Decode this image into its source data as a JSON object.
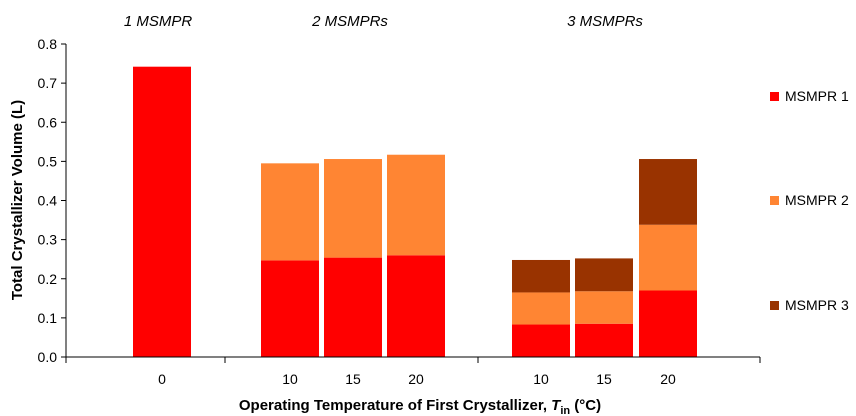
{
  "chart_data": {
    "type": "bar",
    "stacked": true,
    "ylabel": "Total Crystallizer Volume (L)",
    "xlabel_main": "Operating Temperature of First Crystallizer, ",
    "xlabel_sym": "T",
    "xlabel_sub": "in",
    "xlabel_unit": " (°C)",
    "ylim": [
      0,
      0.8
    ],
    "yticks": [
      "0.0",
      "0.1",
      "0.2",
      "0.3",
      "0.4",
      "0.5",
      "0.6",
      "0.7",
      "0.8"
    ],
    "grid": false,
    "legend_position": "right",
    "groups": [
      {
        "label": "1 MSMPR",
        "categories": [
          "0"
        ]
      },
      {
        "label": "2 MSMPRs",
        "categories": [
          "10",
          "15",
          "20"
        ]
      },
      {
        "label": "3 MSMPRs",
        "categories": [
          "10",
          "15",
          "20"
        ]
      }
    ],
    "categories": [
      "0",
      "10",
      "15",
      "20",
      "10",
      "15",
      "20"
    ],
    "series": [
      {
        "name": "MSMPR 1",
        "color": "#ff0000",
        "values": [
          0.742,
          0.247,
          0.254,
          0.26,
          0.083,
          0.085,
          0.17
        ]
      },
      {
        "name": "MSMPR 2",
        "color": "#ff8533",
        "values": [
          0,
          0.248,
          0.252,
          0.257,
          0.082,
          0.083,
          0.168
        ]
      },
      {
        "name": "MSMPR 3",
        "color": "#993300",
        "values": [
          0,
          0,
          0,
          0,
          0.083,
          0.084,
          0.168
        ]
      }
    ]
  }
}
